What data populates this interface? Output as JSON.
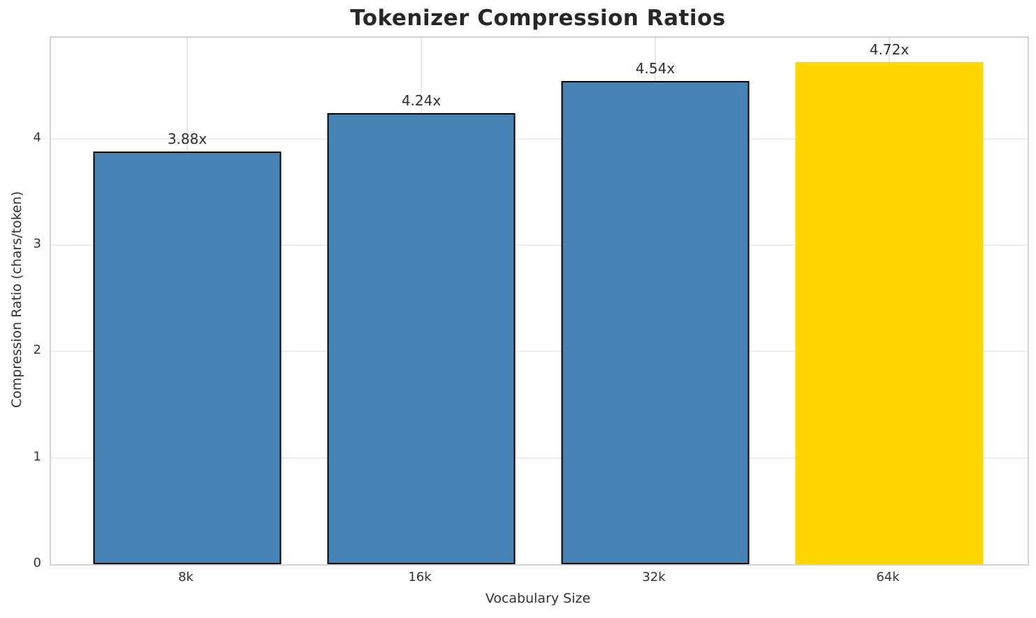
{
  "chart_data": {
    "type": "bar",
    "title": "Tokenizer Compression Ratios",
    "xlabel": "Vocabulary Size",
    "ylabel": "Compression Ratio (chars/token)",
    "categories": [
      "8k",
      "16k",
      "32k",
      "64k"
    ],
    "values": [
      3.88,
      4.24,
      4.54,
      4.72
    ],
    "bar_labels": [
      "3.88x",
      "4.24x",
      "4.54x",
      "4.72x"
    ],
    "bar_colors": [
      "#4682B4",
      "#4682B4",
      "#4682B4",
      "#FFD700"
    ],
    "bar_edge_colors": [
      "#000000",
      "#000000",
      "#000000",
      "none"
    ],
    "yticks": [
      0,
      1,
      2,
      3,
      4
    ],
    "ylim": [
      0,
      4.95
    ],
    "grid": true,
    "legend": "none",
    "style_colors": {
      "grid": "#ededed",
      "spine": "#d3d3d3",
      "text": "#333333",
      "title": "#272727"
    }
  }
}
